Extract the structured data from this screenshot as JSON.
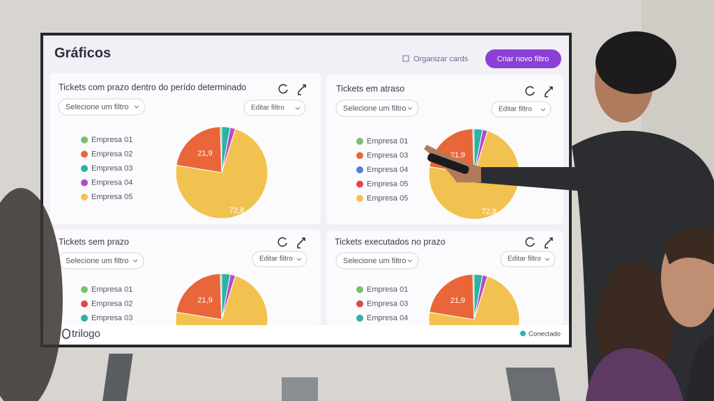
{
  "header": {
    "title": "Gráficos",
    "organize": "Organizar cards",
    "button": "Criar novo filtro"
  },
  "cards": [
    {
      "title": "Tickets com prazo dentro do perído determinado",
      "filter": "Selecione um filtro",
      "edit": "Editar filtro",
      "legend": [
        {
          "name": "Empresa 01",
          "color": "#7cbf6e"
        },
        {
          "name": "Empresa 02",
          "color": "#e8663a"
        },
        {
          "name": "Empresa 03",
          "color": "#2bb3a6"
        },
        {
          "name": "Empresa 04",
          "color": "#b04fc4"
        },
        {
          "name": "Empresa 05",
          "color": "#f2c250"
        }
      ],
      "slices": {
        "values": [
          3.0,
          1.8,
          72.8,
          21.9,
          0.5
        ],
        "colors": [
          "#2bb3a6",
          "#b04fc4",
          "#f2c250",
          "#e8663a",
          "#7cbf6e"
        ],
        "value_labels": [
          null,
          null,
          "72,8",
          "21,9",
          null
        ]
      }
    },
    {
      "title": "Tickets em atraso",
      "filter": "Selecione um filtro",
      "edit": "Editar filtro",
      "legend": [
        {
          "name": "Empresa 01",
          "color": "#7cbf6e"
        },
        {
          "name": "Empresa 03",
          "color": "#e8663a"
        },
        {
          "name": "Empresa 04",
          "color": "#4f7fd6"
        },
        {
          "name": "Empresa 05",
          "color": "#e04848"
        },
        {
          "name": "Empresa 05",
          "color": "#f2c250"
        }
      ],
      "slices": {
        "values": [
          3.0,
          1.8,
          72.8,
          21.9,
          0.5
        ],
        "colors": [
          "#2bb3a6",
          "#b04fc4",
          "#f2c250",
          "#e8663a",
          "#7cbf6e"
        ],
        "value_labels": [
          null,
          null,
          "72,8",
          "21,9",
          null
        ]
      }
    },
    {
      "title": "Tickets sem prazo",
      "filter": "Selecione um filtro",
      "edit": "Editar filtro",
      "legend": [
        {
          "name": "Empresa 01",
          "color": "#7cbf6e"
        },
        {
          "name": "Empresa 02",
          "color": "#e04848"
        },
        {
          "name": "Empresa 03",
          "color": "#2bb3a6"
        }
      ],
      "slices": {
        "values": [
          3.0,
          1.8,
          72.8,
          21.9,
          0.5
        ],
        "colors": [
          "#2bb3a6",
          "#b04fc4",
          "#f2c250",
          "#e8663a",
          "#7cbf6e"
        ],
        "value_labels": [
          null,
          null,
          null,
          "21,9",
          null
        ]
      }
    },
    {
      "title": "Tickets executados no prazo",
      "filter": "Selecione um filtro",
      "edit": "Editar filtro",
      "legend": [
        {
          "name": "Empresa 01",
          "color": "#7cbf6e"
        },
        {
          "name": "Empresa 03",
          "color": "#e04848"
        },
        {
          "name": "Empresa 04",
          "color": "#2bb3a6"
        }
      ],
      "slices": {
        "values": [
          3.0,
          1.8,
          72.8,
          21.9,
          0.5
        ],
        "colors": [
          "#2bb3a6",
          "#b04fc4",
          "#f2c250",
          "#e8663a",
          "#7cbf6e"
        ],
        "value_labels": [
          null,
          null,
          null,
          "21,9",
          null
        ]
      }
    }
  ],
  "footer": {
    "brand": "trilogo",
    "status": "Conectado"
  }
}
